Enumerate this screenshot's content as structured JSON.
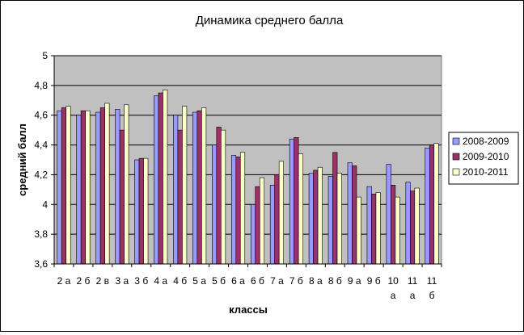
{
  "chart_data": {
    "type": "bar",
    "title": "Динамика среднего балла",
    "xlabel": "классы",
    "ylabel": "средний балл",
    "ylim": [
      3.6,
      5.0
    ],
    "yticks": [
      "3,6",
      "3,8",
      "4",
      "4,2",
      "4,4",
      "4,6",
      "4,8",
      "5"
    ],
    "grid": "horizontal",
    "legend_position": "right",
    "plot_background": "#c0c0c0",
    "categories": [
      [
        "2 а"
      ],
      [
        "2 б"
      ],
      [
        "2 в"
      ],
      [
        "3 а"
      ],
      [
        "3 б"
      ],
      [
        "4 а"
      ],
      [
        "4 б"
      ],
      [
        "5 а"
      ],
      [
        "5 б"
      ],
      [
        "6 а"
      ],
      [
        "6 б"
      ],
      [
        "7 а"
      ],
      [
        "7 б"
      ],
      [
        "8 а"
      ],
      [
        "8 б"
      ],
      [
        "9 а"
      ],
      [
        "9 б"
      ],
      [
        "10",
        "а"
      ],
      [
        "11",
        "а"
      ],
      [
        "11",
        "б"
      ]
    ],
    "series": [
      {
        "name": "2008-2009",
        "color": "#9999ff",
        "values": [
          4.63,
          4.6,
          4.62,
          4.64,
          4.3,
          4.73,
          4.6,
          4.62,
          4.4,
          4.33,
          4.0,
          4.13,
          4.44,
          4.21,
          4.19,
          4.28,
          4.12,
          4.27,
          4.15,
          4.38
        ]
      },
      {
        "name": "2009-2010",
        "color": "#993366",
        "values": [
          4.65,
          4.63,
          4.65,
          4.5,
          4.31,
          4.75,
          4.5,
          4.63,
          4.52,
          4.32,
          4.12,
          4.2,
          4.45,
          4.23,
          4.35,
          4.26,
          4.07,
          4.13,
          4.09,
          4.4
        ]
      },
      {
        "name": "2010-2011",
        "color": "#ffffcc",
        "values": [
          4.66,
          4.63,
          4.68,
          4.67,
          4.31,
          4.77,
          4.66,
          4.65,
          4.5,
          4.35,
          4.18,
          4.29,
          4.34,
          4.25,
          4.21,
          4.05,
          4.08,
          4.05,
          4.11,
          4.41
        ]
      }
    ]
  }
}
